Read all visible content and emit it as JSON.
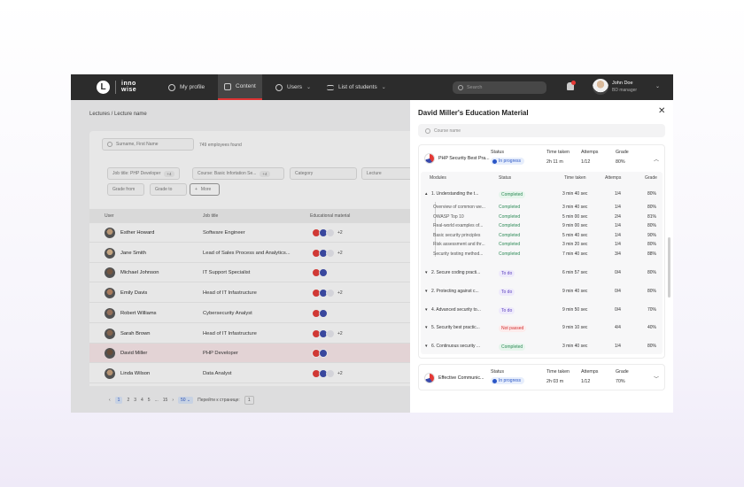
{
  "nav": {
    "logo_letter": "L",
    "logo_line1": "inno",
    "logo_line2": "wise",
    "items": [
      {
        "label": "My profile",
        "icon": "user-circle-icon"
      },
      {
        "label": "Content",
        "icon": "book-icon",
        "active": true
      },
      {
        "label": "Users",
        "icon": "users-icon"
      },
      {
        "label": "List of students",
        "icon": "list-icon"
      }
    ],
    "search_placeholder": "Search",
    "user_name": "John Doe",
    "user_role": "BD manager"
  },
  "breadcrumb": "Lectures / Lecture name",
  "filters": {
    "search_placeholder": "Surname, First Name",
    "found": "749 employees found",
    "job_title": "Job title: PHP Developer",
    "job_more": "+4",
    "course": "Course: Basic Infortation Se...",
    "course_more": "+4",
    "category": "Category",
    "lecture": "Lecture",
    "grade_from": "Grade from",
    "grade_to": "Grade to",
    "more_label": "More"
  },
  "table": {
    "headers": [
      "User",
      "Job title",
      "Educational material"
    ],
    "rows": [
      {
        "name": "Esther Howard",
        "job": "Software Engineer",
        "more": "+2",
        "sel": false,
        "icons": 3
      },
      {
        "name": "Jane Smith",
        "job": "Lead of Sales Process and Analytics...",
        "more": "+2",
        "sel": false,
        "icons": 3
      },
      {
        "name": "Michael Johnson",
        "job": "IT Support Specialist",
        "more": "",
        "sel": false,
        "icons": 2
      },
      {
        "name": "Emily Davis",
        "job": "Head of IT Infastructure",
        "more": "+2",
        "sel": false,
        "icons": 3
      },
      {
        "name": "Robert Williams",
        "job": "Cybersecurity Analyst",
        "more": "",
        "sel": false,
        "icons": 2
      },
      {
        "name": "Sarah Brown",
        "job": "Head of IT Infastructure",
        "more": "+2",
        "sel": false,
        "icons": 3
      },
      {
        "name": "David Miller",
        "job": "PHP Developer",
        "more": "",
        "sel": true,
        "icons": 2
      },
      {
        "name": "Linda Wilson",
        "job": "Data Analyst",
        "more": "+2",
        "sel": false,
        "icons": 3
      }
    ]
  },
  "pager": {
    "pages": [
      "1",
      "2",
      "3",
      "4",
      "5",
      "...",
      "15"
    ],
    "per_page": "50",
    "goto_label": "Перейти к странице:",
    "goto_value": "1"
  },
  "panel": {
    "title": "David Miller's Education Material",
    "search_placeholder": "Course name",
    "col_status": "Status",
    "col_time": "Time taken",
    "col_attempts": "Attemps",
    "col_grade": "Grade",
    "courses": [
      {
        "name": "PHP Security Best Pra...",
        "status": "In progress",
        "time": "2h 11 m",
        "attempts": "1/12",
        "grade": "80%"
      },
      {
        "name": "Effective Communic...",
        "status": "In progress",
        "time": "2h 03 m",
        "attempts": "1/12",
        "grade": "70%"
      }
    ],
    "module_headers": {
      "modules": "Modules",
      "status": "Status",
      "time": "Time taken",
      "attempts": "Attemps",
      "grade": "Grade"
    },
    "modules": [
      {
        "name": "1. Understanding the t...",
        "status": "Completed",
        "kind": "donebadge",
        "time": "3 min 40 sec",
        "attempts": "1/4",
        "grade": "80%",
        "top": true,
        "toggle": "▴"
      },
      {
        "name": "Overview of common we...",
        "status": "Completed",
        "kind": "done",
        "time": "3 min 40 sec",
        "attempts": "1/4",
        "grade": "80%"
      },
      {
        "name": "OWASP Top 10",
        "status": "Completed",
        "kind": "done",
        "time": "5 min 00 sec",
        "attempts": "2/4",
        "grade": "81%"
      },
      {
        "name": "Real-world examples of...",
        "status": "Completed",
        "kind": "done",
        "time": "9 min 00 sec",
        "attempts": "1/4",
        "grade": "80%"
      },
      {
        "name": "Basic security principles",
        "status": "Completed",
        "kind": "done",
        "time": "5 min 40 sec",
        "attempts": "1/4",
        "grade": "90%"
      },
      {
        "name": "Risk assessment and thr...",
        "status": "Completed",
        "kind": "done",
        "time": "3 min 20 sec",
        "attempts": "1/4",
        "grade": "80%"
      },
      {
        "name": "Security testing method...",
        "status": "Completed",
        "kind": "done",
        "time": "7 min 40 sec",
        "attempts": "3/4",
        "grade": "88%"
      },
      {
        "name": "2. Secure coding practi...",
        "status": "To do",
        "kind": "todo",
        "time": "6 min 57 sec",
        "attempts": "0/4",
        "grade": "80%",
        "top": true,
        "toggle": "▾"
      },
      {
        "name": "2. Protecting against c...",
        "status": "To do",
        "kind": "todo",
        "time": "9 min 40 sec",
        "attempts": "0/4",
        "grade": "80%",
        "top": true,
        "toggle": "▾"
      },
      {
        "name": "4. Advanced security to...",
        "status": "To do",
        "kind": "todo",
        "time": "9 min 50 sec",
        "attempts": "0/4",
        "grade": "70%",
        "top": true,
        "toggle": "▾"
      },
      {
        "name": "5. Security best practic...",
        "status": "Not passed",
        "kind": "fail",
        "time": "9 min 10 sec",
        "attempts": "4/4",
        "grade": "40%",
        "top": true,
        "toggle": "▾"
      },
      {
        "name": "6. Continuous security ...",
        "status": "Completed",
        "kind": "donebadge",
        "time": "3 min 40 sec",
        "attempts": "1/4",
        "grade": "80%",
        "top": true,
        "toggle": "▾"
      }
    ]
  }
}
